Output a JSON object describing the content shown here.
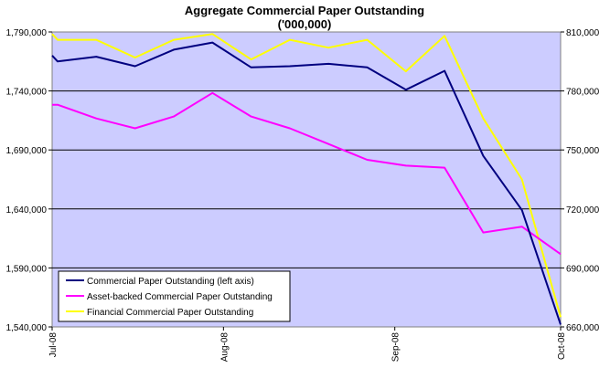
{
  "chart_data": {
    "type": "line",
    "title": "Aggregate Commercial Paper Outstanding",
    "subtitle": "('000,000)",
    "x_tick_labels": [
      "Jul-08",
      "Aug-08",
      "Sep-08",
      "Oct-08"
    ],
    "y_left": {
      "ylim": [
        1540000,
        1790000
      ],
      "ticks": [
        "1,540,000",
        "1,590,000",
        "1,640,000",
        "1,690,000",
        "1,740,000",
        "1,790,000"
      ]
    },
    "y_right": {
      "ylim": [
        660000,
        810000
      ],
      "ticks": [
        "660,000",
        "690,000",
        "720,000",
        "750,000",
        "780,000",
        "810,000"
      ]
    },
    "grid": true,
    "legend_position": "bottom-left",
    "plot_background": "#ccccff",
    "series": [
      {
        "name": "Commercial Paper Outstanding (left axis)",
        "axis": "left",
        "color": "#000080",
        "x": [
          "2008-07-01",
          "2008-07-02",
          "2008-07-09",
          "2008-07-16",
          "2008-07-23",
          "2008-07-30",
          "2008-08-06",
          "2008-08-13",
          "2008-08-20",
          "2008-08-27",
          "2008-09-03",
          "2008-09-10",
          "2008-09-17",
          "2008-09-24",
          "2008-10-01"
        ],
        "values": [
          1770000,
          1765000,
          1769000,
          1761000,
          1775000,
          1781000,
          1760000,
          1761000,
          1763000,
          1760000,
          1741000,
          1757000,
          1685000,
          1639000,
          1542000
        ]
      },
      {
        "name": "Asset-backed Commercial Paper Outstanding",
        "axis": "right",
        "color": "#ff00ff",
        "x": [
          "2008-07-01",
          "2008-07-02",
          "2008-07-09",
          "2008-07-16",
          "2008-07-23",
          "2008-07-30",
          "2008-08-06",
          "2008-08-13",
          "2008-08-20",
          "2008-08-27",
          "2008-09-03",
          "2008-09-10",
          "2008-09-17",
          "2008-09-24",
          "2008-10-01"
        ],
        "values": [
          773000,
          773000,
          766000,
          761000,
          767000,
          779000,
          767000,
          761000,
          753000,
          745000,
          742000,
          741000,
          708000,
          711000,
          697000
        ]
      },
      {
        "name": "Financial Commercial Paper Outstanding",
        "axis": "right",
        "color": "#ffff00",
        "x": [
          "2008-07-01",
          "2008-07-02",
          "2008-07-09",
          "2008-07-16",
          "2008-07-23",
          "2008-07-30",
          "2008-08-06",
          "2008-08-13",
          "2008-08-20",
          "2008-08-27",
          "2008-09-03",
          "2008-09-10",
          "2008-09-17",
          "2008-09-24",
          "2008-10-01"
        ],
        "values": [
          809000,
          806000,
          806000,
          797000,
          806000,
          809000,
          796000,
          806000,
          802000,
          806000,
          790000,
          808000,
          766000,
          735000,
          665000
        ]
      }
    ]
  }
}
